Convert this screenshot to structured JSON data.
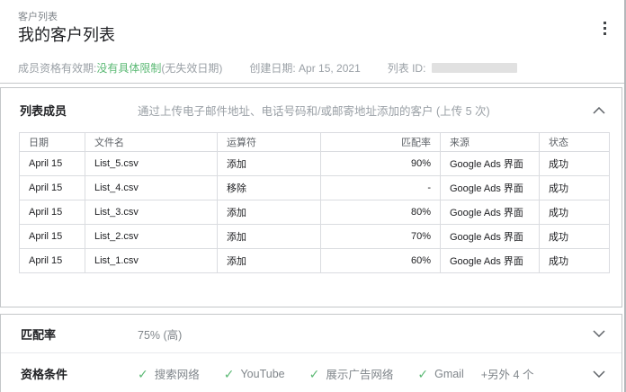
{
  "page": {
    "breadcrumb": "客户列表",
    "title": "我的客户列表",
    "meta": {
      "membership_label": "成员资格有效期:",
      "membership_value": "没有具体限制",
      "membership_suffix": "(无失效日期)",
      "created_label": "创建日期: Apr 15, 2021",
      "list_id_label": "列表 ID:"
    },
    "more_options_icon": "kebab-menu"
  },
  "members_card": {
    "title": "列表成员",
    "description": "通过上传电子邮件地址、电话号码和/或邮寄地址添加的客户 (上传 5 次)",
    "collapse_icon": "chevron-up",
    "table": {
      "headers": [
        "日期",
        "文件名",
        "运算符",
        "匹配率",
        "来源",
        "状态"
      ],
      "rows": [
        [
          "April 15",
          "List_5.csv",
          "添加",
          "90%",
          "Google Ads 界面",
          "成功"
        ],
        [
          "April 15",
          "List_4.csv",
          "移除",
          "-",
          "Google Ads 界面",
          "成功"
        ],
        [
          "April 15",
          "List_3.csv",
          "添加",
          "80%",
          "Google Ads 界面",
          "成功"
        ],
        [
          "April 15",
          "List_2.csv",
          "添加",
          "70%",
          "Google Ads 界面",
          "成功"
        ],
        [
          "April 15",
          "List_1.csv",
          "添加",
          "60%",
          "Google Ads 界面",
          "成功"
        ]
      ]
    }
  },
  "match_rate_row": {
    "label": "匹配率",
    "value": "75% (高)",
    "expand_icon": "chevron-down"
  },
  "eligibility_row": {
    "label": "资格条件",
    "check_icon": "✓",
    "items": [
      {
        "label": "搜索网络",
        "checked": true
      },
      {
        "label": "YouTube",
        "checked": true
      },
      {
        "label": "展示广告网络",
        "checked": true
      },
      {
        "label": "Gmail",
        "checked": true
      },
      {
        "label": "+另外 4 个",
        "checked": false
      }
    ],
    "expand_icon": "chevron-down"
  },
  "colors": {
    "success_green": "#5bb974",
    "text_primary": "#202124",
    "text_secondary": "#80868b",
    "border": "#dadce0"
  }
}
